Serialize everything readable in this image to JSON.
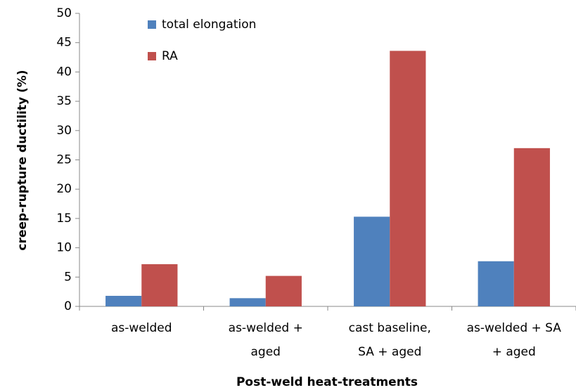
{
  "chart_data": {
    "type": "bar",
    "categories": [
      [
        "as-welded"
      ],
      [
        "as-welded +",
        "aged"
      ],
      [
        "cast baseline,",
        "SA + aged"
      ],
      [
        "as-welded + SA",
        "+ aged"
      ]
    ],
    "series": [
      {
        "name": "total elongation",
        "color": "#4f81bd",
        "values": [
          1.8,
          1.4,
          15.3,
          7.7
        ]
      },
      {
        "name": "RA",
        "color": "#c0504d",
        "values": [
          7.2,
          5.2,
          43.6,
          27.0
        ]
      }
    ],
    "ylim": [
      0,
      50
    ],
    "yticks": [
      0,
      5,
      10,
      15,
      20,
      25,
      30,
      35,
      40,
      45,
      50
    ],
    "xlabel": "Post-weld heat-treatments",
    "ylabel": "creep-rupture ductility (%)",
    "grid": false
  }
}
